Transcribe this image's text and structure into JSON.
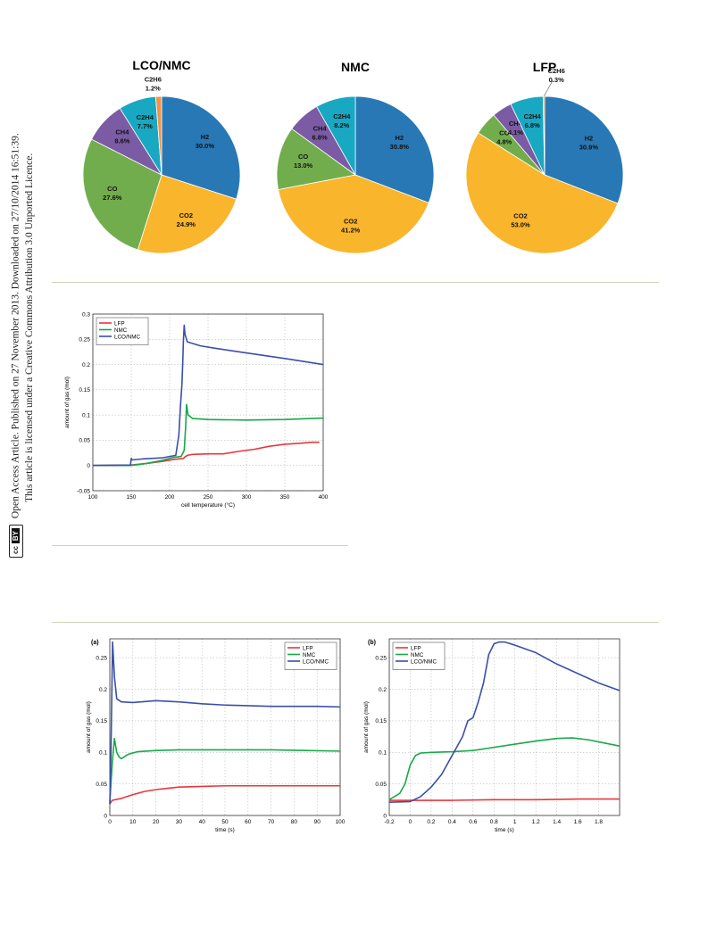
{
  "sidebar": {
    "line1": "Open Access Article. Published on 27 November 2013. Downloaded on 27/10/2014 16:51:39.",
    "line2": "This article is licensed under a Creative Commons Attribution 3.0 Unported Licence.",
    "cc_badge": "cc",
    "by_badge": "BY"
  },
  "chart_data": [
    {
      "type": "pie",
      "title": "LCO/NMC",
      "slices": [
        {
          "label": "H2",
          "value": 30.0,
          "text": "30.0%"
        },
        {
          "label": "CO2",
          "value": 24.9,
          "text": "24.9%"
        },
        {
          "label": "CO",
          "value": 27.6,
          "text": "27.6%"
        },
        {
          "label": "CH4",
          "value": 8.6,
          "text": "8.6%"
        },
        {
          "label": "C2H4",
          "value": 7.7,
          "text": "7.7%"
        },
        {
          "label": "C2H6",
          "value": 1.2,
          "text": "1.2%"
        }
      ]
    },
    {
      "type": "pie",
      "title": "NMC",
      "slices": [
        {
          "label": "H2",
          "value": 30.8,
          "text": "30.8%"
        },
        {
          "label": "CO2",
          "value": 41.2,
          "text": "41.2%"
        },
        {
          "label": "CO",
          "value": 13.0,
          "text": "13.0%"
        },
        {
          "label": "CH4",
          "value": 6.8,
          "text": "6.8%"
        },
        {
          "label": "C2H4",
          "value": 8.2,
          "text": "8.2%"
        }
      ]
    },
    {
      "type": "pie",
      "title": "LFP",
      "slices": [
        {
          "label": "H2",
          "value": 30.9,
          "text": "30.9%"
        },
        {
          "label": "CO2",
          "value": 53.0,
          "text": "53.0%"
        },
        {
          "label": "CO",
          "value": 4.8,
          "text": "4.8%"
        },
        {
          "label": "CH4",
          "value": 4.1,
          "text": "4.1%"
        },
        {
          "label": "C2H4",
          "value": 6.8,
          "text": "6.8%"
        },
        {
          "label": "C2H6",
          "value": 0.3,
          "text": "0.3%"
        }
      ]
    },
    {
      "type": "line",
      "title": "",
      "xlabel": "cell temperature (°C)",
      "ylabel": "amount of gas (mol)",
      "xlim": [
        100,
        400
      ],
      "ylim": [
        -0.05,
        0.3
      ],
      "xticks": [
        100,
        150,
        200,
        250,
        300,
        350,
        400
      ],
      "yticks": [
        -0.05,
        0,
        0.05,
        0.1,
        0.15,
        0.2,
        0.25,
        0.3
      ],
      "grid": true,
      "legend": "top-left",
      "series": [
        {
          "name": "LFP",
          "color": "#e8373b",
          "points": [
            [
              100,
              0
            ],
            [
              150,
              0.001
            ],
            [
              170,
              0.004
            ],
            [
              190,
              0.008
            ],
            [
              205,
              0.012
            ],
            [
              218,
              0.014
            ],
            [
              220,
              0.017
            ],
            [
              223,
              0.02
            ],
            [
              230,
              0.022
            ],
            [
              250,
              0.023
            ],
            [
              270,
              0.023
            ],
            [
              290,
              0.028
            ],
            [
              310,
              0.032
            ],
            [
              330,
              0.038
            ],
            [
              350,
              0.042
            ],
            [
              370,
              0.044
            ],
            [
              385,
              0.046
            ],
            [
              395,
              0.046
            ]
          ]
        },
        {
          "name": "NMC",
          "color": "#19a84a",
          "points": [
            [
              100,
              0
            ],
            [
              150,
              0
            ],
            [
              170,
              0.004
            ],
            [
              190,
              0.01
            ],
            [
              205,
              0.016
            ],
            [
              215,
              0.018
            ],
            [
              219,
              0.03
            ],
            [
              221,
              0.08
            ],
            [
              222,
              0.121
            ],
            [
              224,
              0.1
            ],
            [
              230,
              0.093
            ],
            [
              250,
              0.091
            ],
            [
              300,
              0.09
            ],
            [
              350,
              0.091
            ],
            [
              400,
              0.094
            ]
          ]
        },
        {
          "name": "LCO/NMC",
          "color": "#3a4faa",
          "points": [
            [
              100,
              0
            ],
            [
              149,
              0.001
            ],
            [
              150,
              0.014
            ],
            [
              151,
              0.011
            ],
            [
              165,
              0.013
            ],
            [
              190,
              0.015
            ],
            [
              208,
              0.02
            ],
            [
              212,
              0.06
            ],
            [
              214,
              0.115
            ],
            [
              216,
              0.16
            ],
            [
              217,
              0.2
            ],
            [
              218,
              0.25
            ],
            [
              219,
              0.278
            ],
            [
              220,
              0.26
            ],
            [
              223,
              0.245
            ],
            [
              240,
              0.237
            ],
            [
              260,
              0.232
            ],
            [
              300,
              0.223
            ],
            [
              350,
              0.212
            ],
            [
              400,
              0.2
            ]
          ]
        }
      ]
    },
    {
      "type": "line",
      "title": "(a)",
      "xlabel": "time (s)",
      "ylabel": "amount of gas (mol)",
      "xlim": [
        0,
        100
      ],
      "ylim": [
        0,
        0.28
      ],
      "xticks": [
        0,
        10,
        20,
        30,
        40,
        50,
        60,
        70,
        80,
        90,
        100
      ],
      "yticks": [
        0,
        0.05,
        0.1,
        0.15,
        0.2,
        0.25
      ],
      "grid": true,
      "legend": "top-right",
      "series": [
        {
          "name": "LFP",
          "color": "#e8373b",
          "points": [
            [
              0,
              0.018
            ],
            [
              1,
              0.024
            ],
            [
              5,
              0.027
            ],
            [
              10,
              0.033
            ],
            [
              15,
              0.038
            ],
            [
              20,
              0.041
            ],
            [
              25,
              0.043
            ],
            [
              30,
              0.045
            ],
            [
              40,
              0.046
            ],
            [
              50,
              0.047
            ],
            [
              60,
              0.047
            ],
            [
              70,
              0.047
            ],
            [
              80,
              0.047
            ],
            [
              90,
              0.047
            ],
            [
              100,
              0.047
            ]
          ]
        },
        {
          "name": "NMC",
          "color": "#19a84a",
          "points": [
            [
              0,
              0.02
            ],
            [
              1,
              0.08
            ],
            [
              2,
              0.122
            ],
            [
              3,
              0.1
            ],
            [
              4,
              0.093
            ],
            [
              5,
              0.09
            ],
            [
              8,
              0.097
            ],
            [
              12,
              0.101
            ],
            [
              20,
              0.103
            ],
            [
              30,
              0.104
            ],
            [
              50,
              0.104
            ],
            [
              70,
              0.104
            ],
            [
              85,
              0.103
            ],
            [
              100,
              0.102
            ]
          ]
        },
        {
          "name": "LCO/NMC",
          "color": "#3a4faa",
          "points": [
            [
              0,
              0.018
            ],
            [
              0.5,
              0.1
            ],
            [
              1.2,
              0.275
            ],
            [
              2,
              0.22
            ],
            [
              3,
              0.185
            ],
            [
              5,
              0.18
            ],
            [
              10,
              0.179
            ],
            [
              20,
              0.182
            ],
            [
              30,
              0.18
            ],
            [
              40,
              0.177
            ],
            [
              50,
              0.175
            ],
            [
              60,
              0.174
            ],
            [
              70,
              0.173
            ],
            [
              80,
              0.173
            ],
            [
              90,
              0.173
            ],
            [
              100,
              0.172
            ]
          ]
        }
      ]
    },
    {
      "type": "line",
      "title": "(b)",
      "xlabel": "time (s)",
      "ylabel": "amount of gas (mol)",
      "xlim": [
        -0.2,
        2.0
      ],
      "ylim": [
        0,
        0.28
      ],
      "xticks": [
        -0.2,
        0,
        0.2,
        0.4,
        0.6,
        0.8,
        1,
        1.2,
        1.4,
        1.6,
        1.8
      ],
      "yticks": [
        0,
        0.05,
        0.1,
        0.15,
        0.2,
        0.25
      ],
      "grid": true,
      "legend": "top-left",
      "series": [
        {
          "name": "LFP",
          "color": "#e8373b",
          "points": [
            [
              -0.2,
              0.024
            ],
            [
              0,
              0.024
            ],
            [
              0.4,
              0.024
            ],
            [
              0.8,
              0.025
            ],
            [
              1.2,
              0.025
            ],
            [
              1.6,
              0.026
            ],
            [
              2.0,
              0.026
            ]
          ]
        },
        {
          "name": "NMC",
          "color": "#19a84a",
          "points": [
            [
              -0.2,
              0.025
            ],
            [
              -0.1,
              0.035
            ],
            [
              -0.05,
              0.05
            ],
            [
              0,
              0.08
            ],
            [
              0.05,
              0.095
            ],
            [
              0.1,
              0.099
            ],
            [
              0.2,
              0.1
            ],
            [
              0.4,
              0.101
            ],
            [
              0.6,
              0.103
            ],
            [
              0.8,
              0.108
            ],
            [
              1.0,
              0.113
            ],
            [
              1.2,
              0.118
            ],
            [
              1.4,
              0.122
            ],
            [
              1.55,
              0.123
            ],
            [
              1.7,
              0.12
            ],
            [
              1.85,
              0.115
            ],
            [
              2.0,
              0.11
            ]
          ]
        },
        {
          "name": "LCO/NMC",
          "color": "#3a4faa",
          "points": [
            [
              -0.2,
              0.021
            ],
            [
              0,
              0.022
            ],
            [
              0.1,
              0.03
            ],
            [
              0.2,
              0.045
            ],
            [
              0.3,
              0.065
            ],
            [
              0.4,
              0.095
            ],
            [
              0.5,
              0.125
            ],
            [
              0.55,
              0.15
            ],
            [
              0.6,
              0.155
            ],
            [
              0.65,
              0.18
            ],
            [
              0.7,
              0.21
            ],
            [
              0.75,
              0.255
            ],
            [
              0.8,
              0.272
            ],
            [
              0.85,
              0.275
            ],
            [
              0.9,
              0.275
            ],
            [
              1.0,
              0.27
            ],
            [
              1.2,
              0.258
            ],
            [
              1.4,
              0.24
            ],
            [
              1.6,
              0.225
            ],
            [
              1.8,
              0.21
            ],
            [
              2.0,
              0.198
            ]
          ]
        }
      ]
    }
  ]
}
